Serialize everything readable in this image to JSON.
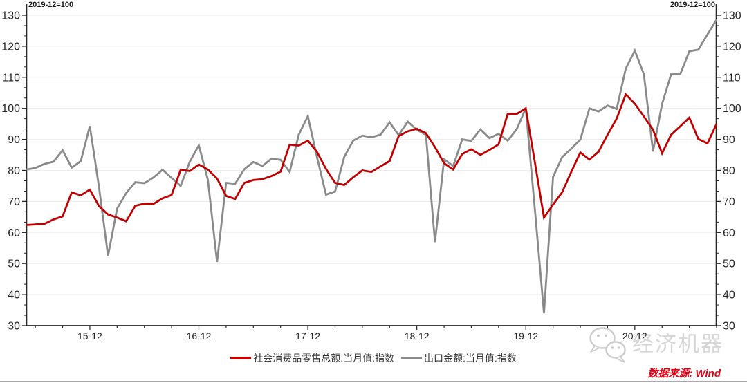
{
  "annotations": {
    "left_note": "2019-12=100",
    "right_note": "2019-12=100"
  },
  "legend": {
    "items": [
      {
        "label": "社会消费品零售总额:当月值:指数",
        "color": "#c00000"
      },
      {
        "label": "出口金额:当月值:指数",
        "color": "#8a8a8a"
      }
    ]
  },
  "watermark": {
    "text": "经济机器",
    "logo": "wechat-bubbles-icon"
  },
  "footer": {
    "source": "数据来源: Wind",
    "source_color": "#e60012"
  },
  "colors": {
    "retail_line": "#c00000",
    "export_line": "#8a8a8a",
    "axis": "#262626",
    "grid": "#ececec",
    "tick_label": "#262626",
    "watermark_gray": "#cccccc"
  },
  "chart_data": {
    "type": "line",
    "title": "",
    "xlabel": "",
    "ylabel": "",
    "note": "2019-12=100",
    "grid": "horizontal",
    "legend_position": "bottom",
    "ylim": [
      30,
      130
    ],
    "y_ticks": [
      30,
      40,
      50,
      60,
      70,
      80,
      90,
      100,
      110,
      120,
      130
    ],
    "x_major_tick_indices": [
      7,
      19,
      31,
      43,
      55,
      67
    ],
    "x_major_labels": [
      "15-12",
      "16-12",
      "17-12",
      "18-12",
      "19-12",
      "20-12"
    ],
    "x_minor_tick_every": 3,
    "x": [
      "2015-05",
      "2015-06",
      "2015-07",
      "2015-08",
      "2015-09",
      "2015-10",
      "2015-11",
      "2015-12",
      "2016-01",
      "2016-02",
      "2016-03",
      "2016-04",
      "2016-05",
      "2016-06",
      "2016-07",
      "2016-08",
      "2016-09",
      "2016-10",
      "2016-11",
      "2016-12",
      "2017-01",
      "2017-02",
      "2017-03",
      "2017-04",
      "2017-05",
      "2017-06",
      "2017-07",
      "2017-08",
      "2017-09",
      "2017-10",
      "2017-11",
      "2017-12",
      "2018-01",
      "2018-02",
      "2018-03",
      "2018-04",
      "2018-05",
      "2018-06",
      "2018-07",
      "2018-08",
      "2018-09",
      "2018-10",
      "2018-11",
      "2018-12",
      "2019-01",
      "2019-02",
      "2019-03",
      "2019-04",
      "2019-05",
      "2019-06",
      "2019-07",
      "2019-08",
      "2019-09",
      "2019-10",
      "2019-11",
      "2019-12",
      "2020-01",
      "2020-02",
      "2020-03",
      "2020-04",
      "2020-05",
      "2020-06",
      "2020-07",
      "2020-08",
      "2020-09",
      "2020-10",
      "2020-11",
      "2020-12",
      "2021-01",
      "2021-02",
      "2021-03",
      "2021-04",
      "2021-05",
      "2021-06",
      "2021-07",
      "2021-08",
      "2021-09"
    ],
    "series": [
      {
        "name": "社会消费品零售总额:当月值:指数",
        "color": "#c00000",
        "values": [
          62.4,
          62.6,
          62.8,
          64.2,
          65.2,
          72.9,
          72.0,
          73.8,
          68.5,
          65.8,
          64.8,
          63.6,
          68.6,
          69.3,
          69.2,
          71.0,
          72.1,
          80.2,
          79.8,
          81.9,
          80.3,
          77.4,
          71.8,
          70.8,
          76.0,
          76.9,
          77.2,
          78.2,
          79.6,
          88.3,
          88.0,
          89.6,
          86.0,
          80.5,
          76.0,
          75.3,
          77.8,
          80.0,
          79.5,
          81.3,
          83.0,
          91.1,
          92.6,
          93.4,
          92.0,
          87.5,
          82.3,
          80.3,
          85.3,
          86.8,
          85.0,
          86.6,
          88.4,
          98.2,
          98.2,
          100.0,
          82.5,
          64.8,
          69.0,
          73.0,
          79.5,
          85.8,
          83.5,
          86.0,
          91.5,
          96.7,
          104.5,
          101.5,
          97.4,
          93.1,
          85.5,
          91.5,
          94.2,
          97.0,
          90.1,
          88.7,
          95.0
        ]
      },
      {
        "name": "出口金额:当月值:指数",
        "color": "#8a8a8a",
        "values": [
          80.3,
          80.8,
          82.1,
          82.8,
          86.5,
          80.9,
          83.0,
          94.3,
          74.7,
          52.5,
          67.7,
          72.7,
          76.2,
          75.9,
          77.7,
          80.2,
          77.6,
          75.0,
          82.8,
          88.1,
          76.9,
          50.5,
          76.0,
          75.7,
          80.4,
          82.7,
          81.4,
          83.8,
          83.4,
          79.5,
          91.5,
          97.5,
          84.4,
          72.2,
          73.2,
          84.3,
          89.6,
          91.2,
          90.7,
          91.5,
          95.5,
          91.4,
          95.7,
          93.1,
          91.5,
          56.9,
          83.6,
          81.4,
          90.0,
          89.5,
          93.2,
          90.4,
          91.8,
          89.6,
          93.3,
          100.0,
          67.2,
          34.0,
          77.9,
          84.3,
          87.0,
          89.9,
          100.0,
          99.0,
          100.9,
          99.8,
          112.8,
          118.6,
          111.0,
          86.1,
          101.4,
          111.0,
          111.0,
          118.4,
          118.9,
          123.8,
          128.6
        ]
      }
    ]
  }
}
